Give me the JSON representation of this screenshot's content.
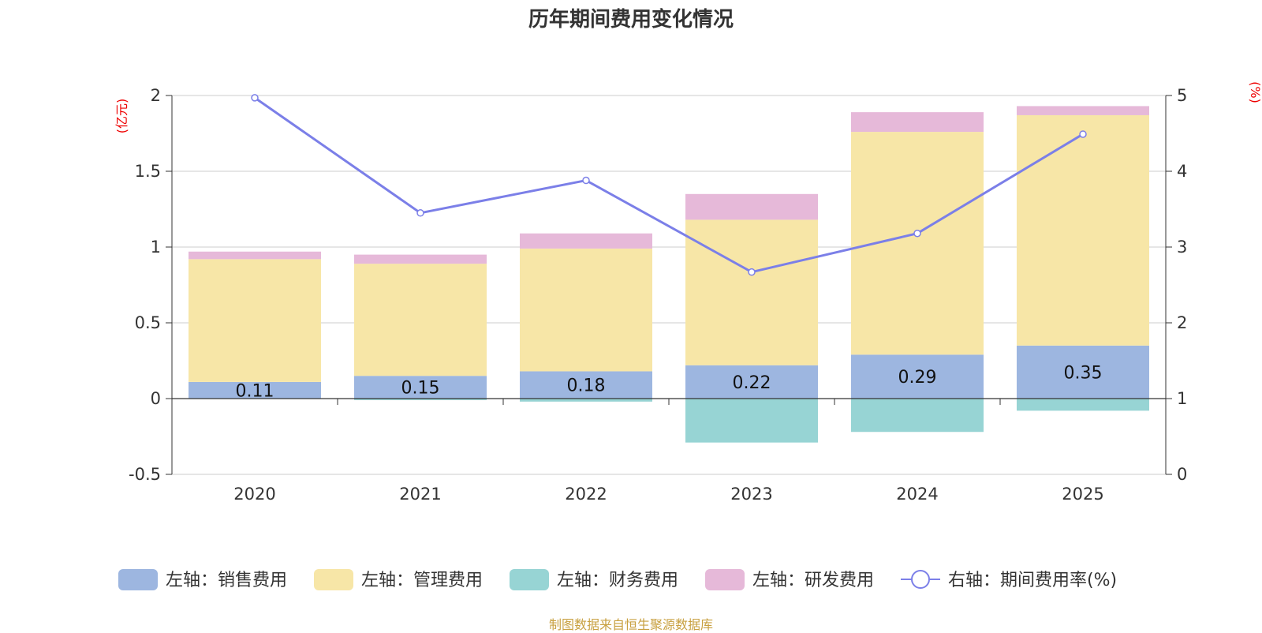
{
  "chart_data": {
    "type": "bar",
    "title": "历年期间费用变化情况",
    "categories": [
      "2020",
      "2021",
      "2022",
      "2023",
      "2024",
      "2025"
    ],
    "left_axis": {
      "unit": "(亿元)",
      "ylim": [
        -0.5,
        2
      ],
      "ticks": [
        "-0.5",
        "0",
        "0.5",
        "1",
        "1.5",
        "2"
      ],
      "tick_values": [
        -0.5,
        0,
        0.5,
        1,
        1.5,
        2
      ]
    },
    "right_axis": {
      "unit": "(%)",
      "ylim": [
        0,
        5
      ],
      "ticks": [
        "0",
        "1",
        "2",
        "3",
        "4",
        "5"
      ],
      "tick_values": [
        0,
        1,
        2,
        3,
        4,
        5
      ]
    },
    "series": [
      {
        "name": "左轴：销售费用",
        "type": "bar",
        "axis": "left",
        "color": "#9db6e0",
        "values": [
          0.11,
          0.15,
          0.18,
          0.22,
          0.29,
          0.35
        ],
        "labels": [
          "0.11",
          "0.15",
          "0.18",
          "0.22",
          "0.29",
          "0.35"
        ]
      },
      {
        "name": "左轴：管理费用",
        "type": "bar",
        "axis": "left",
        "color": "#f7e6a7",
        "values": [
          0.81,
          0.74,
          0.81,
          0.96,
          1.47,
          1.52
        ]
      },
      {
        "name": "左轴：财务费用",
        "type": "bar",
        "axis": "left",
        "color": "#97d4d4",
        "values": [
          0.0,
          -0.01,
          -0.02,
          -0.29,
          -0.22,
          -0.08
        ]
      },
      {
        "name": "左轴：研发费用",
        "type": "bar",
        "axis": "left",
        "color": "#e6b9d9",
        "values": [
          0.05,
          0.06,
          0.1,
          0.17,
          0.13,
          0.06
        ]
      },
      {
        "name": "右轴：期间费用率(%)",
        "type": "line",
        "axis": "right",
        "color": "#7b7fe8",
        "values": [
          4.97,
          3.45,
          3.88,
          2.67,
          3.18,
          4.49
        ]
      }
    ]
  },
  "source_note": "制图数据来自恒生聚源数据库"
}
